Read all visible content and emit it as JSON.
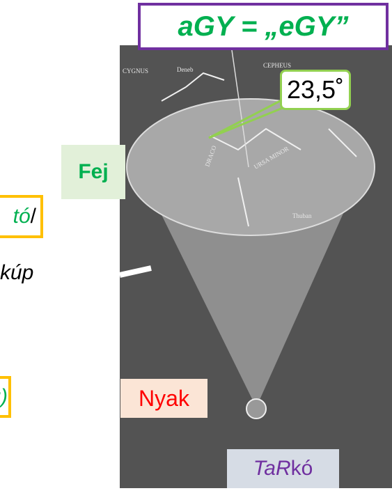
{
  "title": "aGY = „eGY”",
  "angle_label": "23,5˚",
  "labels": {
    "fej": "Fej",
    "nyak": "Nyak",
    "tarko": [
      "TaR",
      "kó"
    ]
  },
  "left_fragments": {
    "top": [
      "tó",
      "/"
    ],
    "middle": "kúp",
    "bottom": "g)"
  },
  "photo_labels": [
    "CYGNUS",
    "Deneb",
    "CEPHEUS",
    "URSA MINOR",
    "DRACO",
    "Thuban"
  ]
}
